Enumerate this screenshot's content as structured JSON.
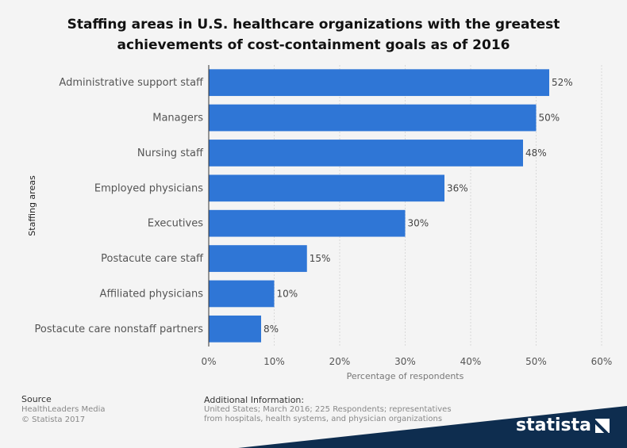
{
  "chart_data": {
    "type": "bar",
    "orientation": "horizontal",
    "title_lines": [
      "Staffing areas in U.S. healthcare organizations with the greatest",
      "achievements of cost-containment goals as of 2016"
    ],
    "categories": [
      "Administrative support staff",
      "Managers",
      "Nursing staff",
      "Employed physicians",
      "Executives",
      "Postacute care staff",
      "Affiliated physicians",
      "Postacute care nonstaff partners"
    ],
    "values": [
      52,
      50,
      48,
      36,
      30,
      15,
      10,
      8
    ],
    "value_labels": [
      "52%",
      "50%",
      "48%",
      "36%",
      "30%",
      "15%",
      "10%",
      "8%"
    ],
    "xlabel": "Percentage of respondents",
    "ylabel": "Staffing areas",
    "xlim": [
      0,
      60
    ],
    "xticks": [
      0,
      10,
      20,
      30,
      40,
      50,
      60
    ],
    "xtick_labels": [
      "0%",
      "10%",
      "20%",
      "30%",
      "40%",
      "50%",
      "60%"
    ],
    "grid": true,
    "bar_color": "#2f76d6"
  },
  "footer": {
    "source_heading": "Source",
    "source_line1": "HealthLeaders Media",
    "source_line2": "© Statista 2017",
    "info_heading": "Additional Information:",
    "info_line1": "United States; March 2016; 225 Respondents; representatives",
    "info_line2": "from hospitals, health systems, and physician organizations"
  },
  "brand": {
    "name": "statista",
    "logo_icon": "statista-mark-icon",
    "band_color": "#0e2d4f"
  }
}
